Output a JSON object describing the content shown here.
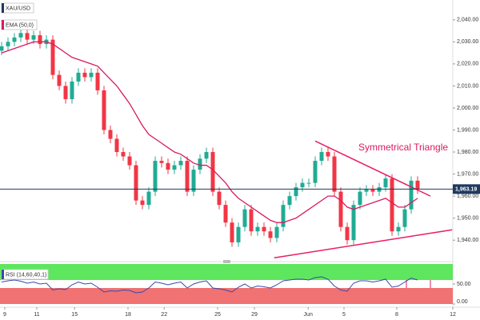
{
  "chart_data": [
    {
      "type": "candlestick",
      "title": "XAU/USD",
      "x": [
        0,
        1,
        2,
        3,
        4,
        5,
        6,
        7,
        8,
        9,
        10,
        11,
        12,
        13,
        14,
        15,
        16,
        17,
        18,
        19,
        20,
        21,
        22,
        23,
        24,
        25,
        26,
        27,
        28,
        29,
        30,
        31,
        32,
        33,
        34,
        35,
        36,
        37,
        38,
        39,
        40,
        41,
        42,
        43,
        44,
        45,
        46,
        47,
        48,
        49,
        50,
        51,
        52,
        53,
        54,
        55,
        56,
        57,
        58,
        59,
        60,
        61,
        62,
        63,
        64,
        65
      ],
      "open": [
        2026,
        2028,
        2030,
        2032,
        2034,
        2031,
        2033,
        2029,
        2031,
        2015,
        2010,
        2004,
        2012,
        2016,
        2014,
        2016,
        2008,
        1990,
        1986,
        1980,
        1978,
        1974,
        1958,
        1956,
        1962,
        1976,
        1975,
        1972,
        1974,
        1976,
        1962,
        1972,
        1977,
        1980,
        1962,
        1956,
        1948,
        1939,
        1946,
        1954,
        1944,
        1946,
        1944,
        1941,
        1946,
        1956,
        1960,
        1964,
        1966,
        1966,
        1976,
        1980,
        1978,
        1962,
        1946,
        1940,
        1956,
        1962,
        1963,
        1962,
        1964,
        1968,
        1944,
        1946,
        1954,
        1967
      ],
      "high": [
        2030,
        2032,
        2034,
        2036,
        2036,
        2035,
        2035,
        2033,
        2033,
        2017,
        2012,
        2014,
        2018,
        2018,
        2018,
        2018,
        2010,
        1992,
        1988,
        1982,
        1980,
        1976,
        1960,
        1964,
        1978,
        1978,
        1977,
        1976,
        1978,
        1978,
        1974,
        1979,
        1982,
        1982,
        1964,
        1958,
        1950,
        1948,
        1956,
        1956,
        1948,
        1948,
        1946,
        1948,
        1958,
        1962,
        1966,
        1968,
        1968,
        1978,
        1982,
        1982,
        1980,
        1964,
        1948,
        1958,
        1964,
        1965,
        1965,
        1966,
        1970,
        1970,
        1948,
        1956,
        1969,
        1969
      ],
      "low": [
        2024,
        2026,
        2028,
        2030,
        2029,
        2029,
        2027,
        2027,
        2013,
        2008,
        2002,
        2002,
        2010,
        2012,
        2012,
        2006,
        1988,
        1984,
        1978,
        1976,
        1972,
        1956,
        1954,
        1954,
        1960,
        1973,
        1970,
        1970,
        1972,
        1960,
        1960,
        1970,
        1975,
        1960,
        1954,
        1946,
        1937,
        1937,
        1944,
        1942,
        1942,
        1942,
        1939,
        1939,
        1944,
        1954,
        1958,
        1962,
        1964,
        1964,
        1974,
        1976,
        1960,
        1944,
        1938,
        1938,
        1954,
        1960,
        1960,
        1960,
        1962,
        1942,
        1942,
        1944,
        1952,
        1961
      ],
      "close": [
        2028,
        2030,
        2032,
        2034,
        2031,
        2033,
        2029,
        2031,
        2015,
        2010,
        2004,
        2012,
        2016,
        2014,
        2016,
        2008,
        1990,
        1986,
        1980,
        1978,
        1974,
        1958,
        1956,
        1962,
        1976,
        1975,
        1972,
        1974,
        1976,
        1962,
        1972,
        1977,
        1980,
        1962,
        1956,
        1948,
        1939,
        1946,
        1954,
        1944,
        1946,
        1944,
        1941,
        1946,
        1956,
        1960,
        1964,
        1966,
        1966,
        1976,
        1980,
        1978,
        1962,
        1946,
        1940,
        1956,
        1962,
        1963,
        1962,
        1964,
        1968,
        1944,
        1946,
        1954,
        1967,
        1963.19
      ],
      "up_color": "#22ab94",
      "down_color": "#f23645",
      "series": [
        {
          "name": "EMA (50,0)",
          "color": "#d81b60",
          "values": [
            2025,
            2026,
            2027,
            2028,
            2029,
            2030,
            2030,
            2030,
            2029,
            2027,
            2025,
            2023,
            2022,
            2021,
            2020,
            2019,
            2016,
            2013,
            2010,
            2006,
            2002,
            1997,
            1992,
            1988,
            1986,
            1984,
            1982,
            1980,
            1979,
            1977,
            1975,
            1974,
            1974,
            1972,
            1969,
            1966,
            1962,
            1959,
            1957,
            1955,
            1953,
            1951,
            1949,
            1948,
            1948,
            1949,
            1950,
            1952,
            1954,
            1956,
            1958,
            1960,
            1960,
            1958,
            1955,
            1954,
            1955,
            1956,
            1957,
            1958,
            1959,
            1957,
            1955,
            1955,
            1957,
            1959
          ]
        }
      ],
      "trendlines": [
        {
          "color": "#e91e63",
          "x": [
            49,
            67
          ],
          "y": [
            1985,
            1960
          ]
        },
        {
          "color": "#e91e63",
          "x": [
            42.6,
            70.4
          ],
          "y": [
            1932,
            1944.7
          ]
        }
      ],
      "annotation": "Symmetrical Triangle",
      "annotation_color": "#d81b60",
      "price_line": {
        "value": 1963.19,
        "label": "1,963.19",
        "color": "#1f3a5f"
      },
      "xlim": [
        -0.25,
        70.5
      ],
      "ylim": [
        1931,
        2049
      ],
      "xticks": [
        {
          "value": 0.5,
          "label": "9"
        },
        {
          "value": 5.5,
          "label": "11"
        },
        {
          "value": 11.4,
          "label": "15"
        },
        {
          "value": 19.75,
          "label": "18"
        },
        {
          "value": 25.4,
          "label": "22"
        },
        {
          "value": 33.75,
          "label": "25"
        },
        {
          "value": 39.5,
          "label": "29"
        },
        {
          "value": 47.9,
          "label": "Jun"
        },
        {
          "value": 53.5,
          "label": "5"
        },
        {
          "value": 61.75,
          "label": "8"
        },
        {
          "value": 70.5,
          "label": "12"
        }
      ],
      "yticks": [
        {
          "value": 1940,
          "label": "1,940.00"
        },
        {
          "value": 1950,
          "label": "1,950.00"
        },
        {
          "value": 1960,
          "label": "1,960.00"
        },
        {
          "value": 1970,
          "label": "1,970.00"
        },
        {
          "value": 1980,
          "label": "1,980.00"
        },
        {
          "value": 1990,
          "label": "1,990.00"
        },
        {
          "value": 2000,
          "label": "2,000.00"
        },
        {
          "value": 2010,
          "label": "2,010.00"
        },
        {
          "value": 2020,
          "label": "2,020.00"
        },
        {
          "value": 2030,
          "label": "2,030.00"
        },
        {
          "value": 2040,
          "label": "2,040.00"
        }
      ]
    },
    {
      "type": "line",
      "title": "RSI (14,60,40,1)",
      "color": "#3949ab",
      "upper_band": 60,
      "lower_band": 40,
      "upper_color": "#5ee65e",
      "lower_color": "#f07272",
      "values": [
        55,
        58,
        60,
        57,
        52,
        55,
        50,
        52,
        35,
        38,
        36,
        48,
        55,
        50,
        52,
        42,
        30,
        33,
        32,
        35,
        34,
        28,
        30,
        40,
        55,
        52,
        48,
        52,
        55,
        40,
        50,
        55,
        58,
        40,
        38,
        35,
        30,
        42,
        50,
        40,
        45,
        43,
        40,
        48,
        58,
        60,
        62,
        62,
        60,
        66,
        68,
        62,
        45,
        35,
        32,
        52,
        58,
        58,
        55,
        58,
        62,
        42,
        45,
        55,
        65,
        60
      ],
      "ylim": [
        0,
        100
      ],
      "yticks": [
        {
          "value": 50,
          "label": "50.00"
        },
        {
          "value": 0,
          "label": "0.00"
        }
      ]
    }
  ]
}
